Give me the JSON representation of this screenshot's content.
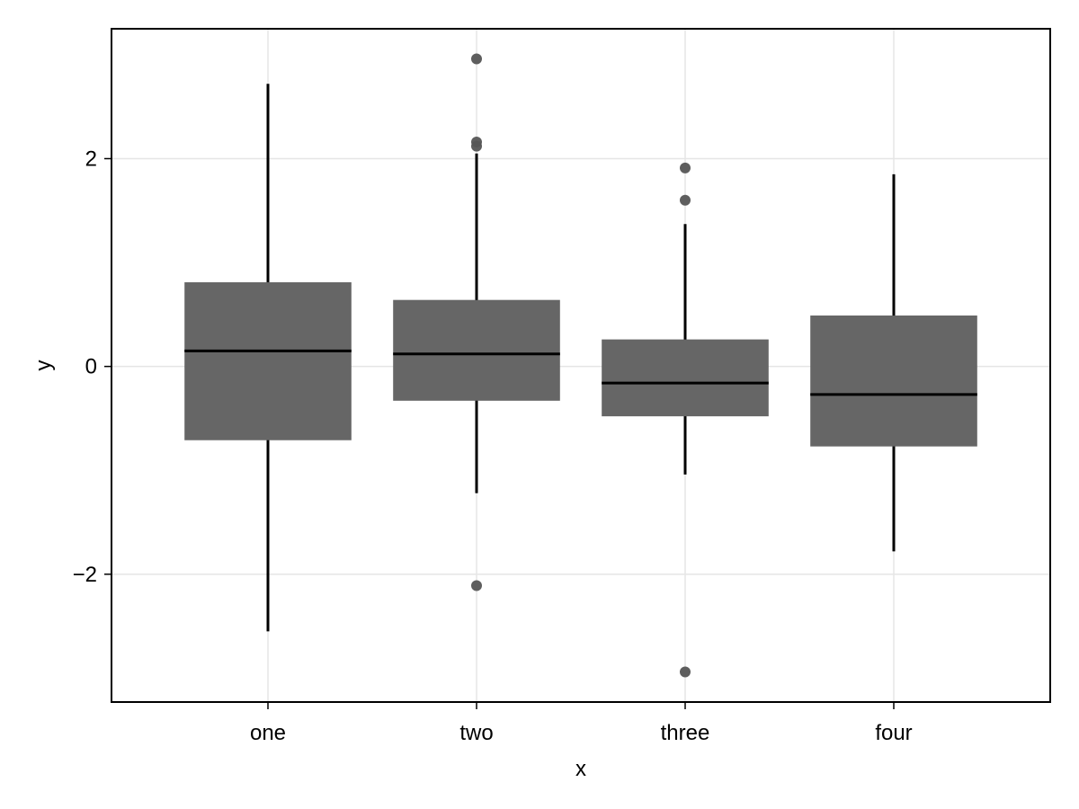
{
  "chart_data": {
    "type": "box",
    "title": "",
    "xlabel": "x",
    "ylabel": "y",
    "categories": [
      "one",
      "two",
      "three",
      "four"
    ],
    "ylim": [
      -3.23,
      3.25
    ],
    "yticks": [
      {
        "value": -2,
        "label": "−2"
      },
      {
        "value": 0,
        "label": "0"
      },
      {
        "value": 2,
        "label": "2"
      }
    ],
    "grid": true,
    "colors": {
      "box_fill": "#666666",
      "median": "#000000",
      "whisker": "#000000",
      "outlier": "#555555",
      "grid": "#e5e5e5",
      "frame": "#000000"
    },
    "boxes": [
      {
        "category": "one",
        "whisker_low": -2.55,
        "q1": -0.71,
        "median": 0.15,
        "q3": 0.81,
        "whisker_high": 2.72,
        "outliers": []
      },
      {
        "category": "two",
        "whisker_low": -1.22,
        "q1": -0.33,
        "median": 0.12,
        "q3": 0.64,
        "whisker_high": 2.05,
        "outliers": [
          2.96,
          2.16,
          2.12,
          -2.11
        ]
      },
      {
        "category": "three",
        "whisker_low": -1.04,
        "q1": -0.48,
        "median": -0.16,
        "q3": 0.26,
        "whisker_high": 1.37,
        "outliers": [
          1.91,
          1.6,
          -2.94
        ]
      },
      {
        "category": "four",
        "whisker_low": -1.78,
        "q1": -0.77,
        "median": -0.27,
        "q3": 0.49,
        "whisker_high": 1.85,
        "outliers": []
      }
    ]
  }
}
